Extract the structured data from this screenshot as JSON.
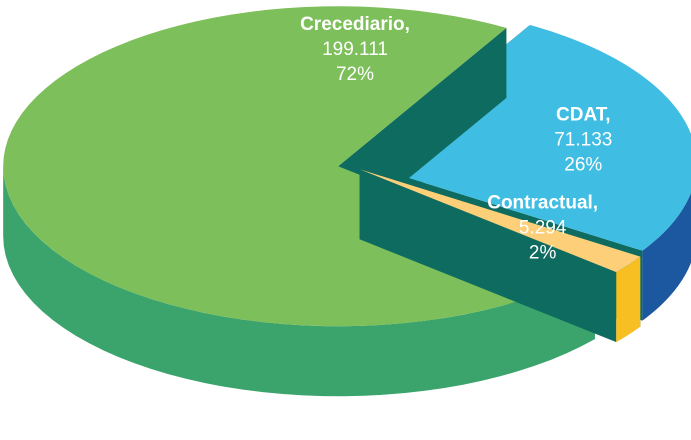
{
  "chart_data": {
    "type": "pie",
    "categories": [
      "Crecediario,",
      "CDAT,",
      "Contractual,"
    ],
    "values": [
      199111,
      71133,
      5294
    ],
    "value_labels": [
      "199.111",
      "71.133",
      "5.294"
    ],
    "percents": [
      72,
      26,
      2
    ],
    "percent_labels": [
      "72%",
      "26%",
      "2%"
    ],
    "colors": [
      "#7dbf5a",
      "#40bde3",
      "#fccf78"
    ],
    "side_colors": [
      "#3aa46c",
      "#1b58a0",
      "#f7bf22"
    ]
  }
}
